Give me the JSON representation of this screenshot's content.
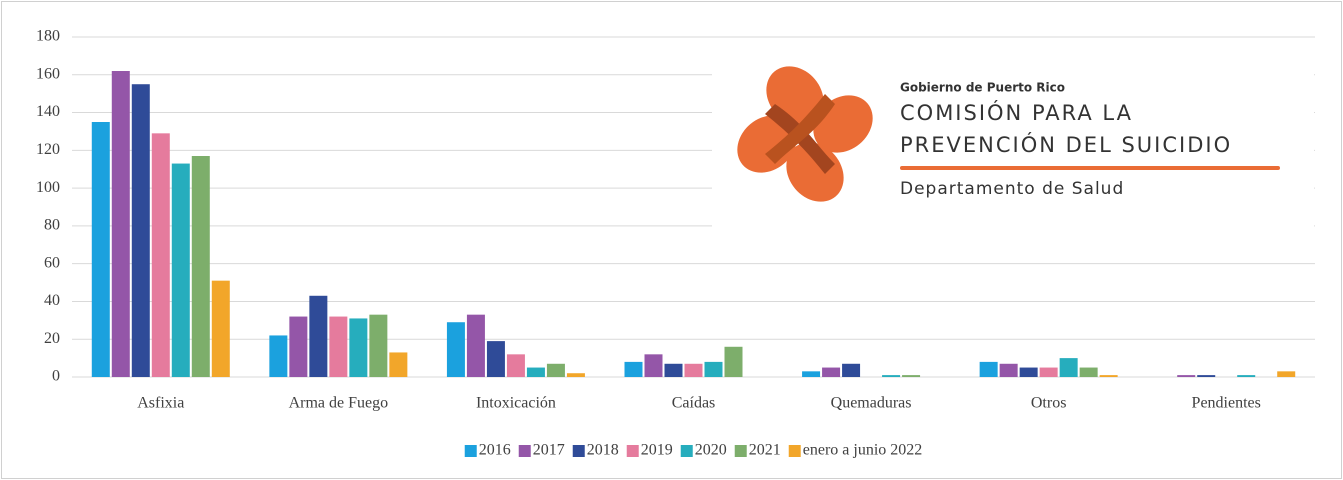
{
  "chart_data": {
    "type": "bar",
    "categories": [
      "Asfixia",
      "Arma de Fuego",
      "Intoxicación",
      "Caídas",
      "Quemaduras",
      "Otros",
      "Pendientes"
    ],
    "series": [
      {
        "name": "2016",
        "color": "#1ba1de",
        "values": [
          135,
          22,
          29,
          8,
          3,
          8,
          0
        ]
      },
      {
        "name": "2017",
        "color": "#9456a8",
        "values": [
          162,
          32,
          33,
          12,
          5,
          7,
          1
        ]
      },
      {
        "name": "2018",
        "color": "#2f4b98",
        "values": [
          155,
          43,
          19,
          7,
          7,
          5,
          1
        ]
      },
      {
        "name": "2019",
        "color": "#e57b9d",
        "values": [
          129,
          32,
          12,
          7,
          0,
          5,
          0
        ]
      },
      {
        "name": "2020",
        "color": "#26adbd",
        "values": [
          113,
          31,
          5,
          8,
          1,
          10,
          1
        ]
      },
      {
        "name": "2021",
        "color": "#7dae6b",
        "values": [
          117,
          33,
          7,
          16,
          1,
          5,
          0
        ]
      },
      {
        "name": "enero a junio 2022",
        "color": "#f2a62a",
        "values": [
          51,
          13,
          2,
          0,
          0,
          1,
          3
        ]
      }
    ],
    "ylim": [
      0,
      180
    ],
    "yticks": [
      0,
      20,
      40,
      60,
      80,
      100,
      120,
      140,
      160,
      180
    ],
    "grid": true,
    "legend": "bottom"
  },
  "logo": {
    "agency": "Gobierno de Puerto Rico",
    "line1": "COMISIÓN PARA LA",
    "line2": "PREVENCIÓN DEL SUICIDIO",
    "department": "Departamento de Salud"
  }
}
